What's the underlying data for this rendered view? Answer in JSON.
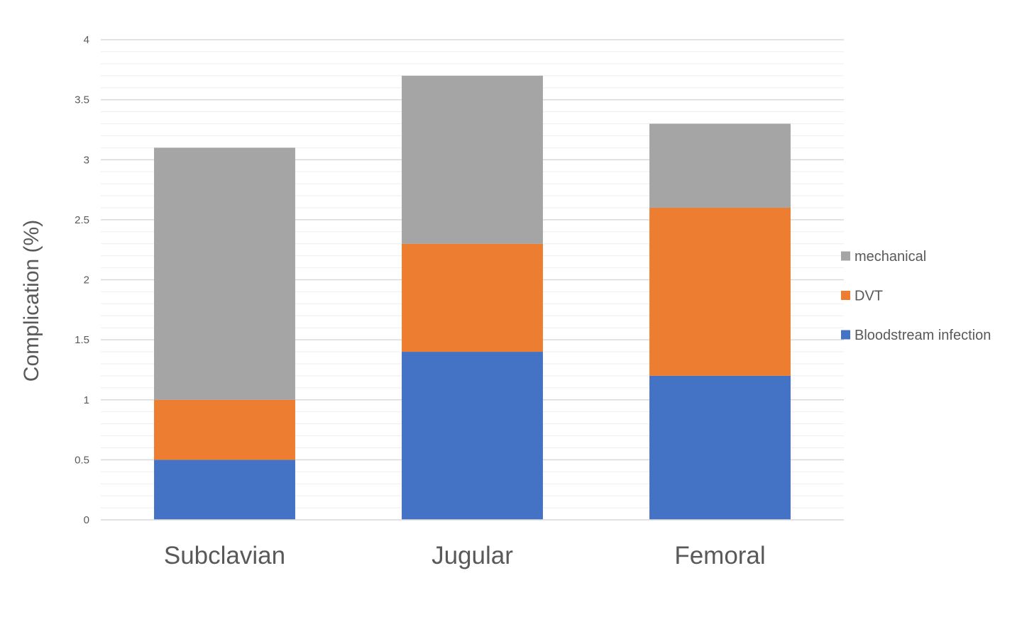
{
  "chart_data": {
    "type": "bar",
    "stacked": true,
    "categories": [
      "Subclavian",
      "Jugular",
      "Femoral"
    ],
    "series": [
      {
        "name": "Bloodstream infection",
        "values": [
          0.5,
          1.4,
          1.2
        ],
        "color": "#4472C4"
      },
      {
        "name": "DVT",
        "values": [
          0.5,
          0.9,
          1.4
        ],
        "color": "#ED7D31"
      },
      {
        "name": "mechanical",
        "values": [
          2.1,
          1.4,
          0.7
        ],
        "color": "#A5A5A5"
      }
    ],
    "title": "",
    "xlabel": "",
    "ylabel": "Complication (%)",
    "ylim": [
      0,
      4
    ],
    "y_major_step": 0.5,
    "y_minor_step": 0.1,
    "y_tick_labels": [
      "0",
      "0.5",
      "1",
      "1.5",
      "2",
      "2.5",
      "3",
      "3.5",
      "4"
    ],
    "grid": true,
    "legend_position": "right",
    "legend_order": [
      "mechanical",
      "DVT",
      "Bloodstream infection"
    ]
  }
}
